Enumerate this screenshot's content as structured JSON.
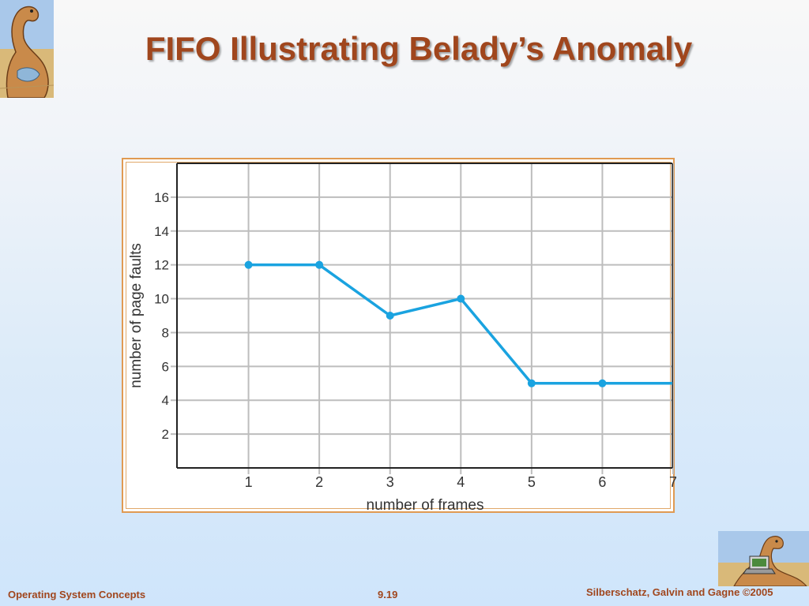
{
  "slide": {
    "title": "FIFO Illustrating Belady’s Anomaly"
  },
  "footer": {
    "left": "Operating System Concepts",
    "center": "9.19",
    "right": "Silberschatz, Galvin and Gagne ©2005"
  },
  "icons": {
    "top_left": "dinosaur-logo-icon",
    "bottom_right": "dinosaur-laptop-logo-icon"
  },
  "colors": {
    "title": "#a0461d",
    "series_line": "#1aa3e0",
    "frame_border": "#e09a52",
    "grid": "#bdbdbd"
  },
  "chart_data": {
    "type": "line",
    "title": "",
    "xlabel": "number of frames",
    "ylabel": "number of page faults",
    "x": [
      1,
      2,
      3,
      4,
      5,
      6,
      7
    ],
    "series": [
      {
        "values": [
          12,
          12,
          9,
          10,
          5,
          5,
          5
        ]
      }
    ],
    "xlim": [
      0,
      7
    ],
    "ylim": [
      0,
      18
    ],
    "xticks": [
      "1",
      "2",
      "3",
      "4",
      "5",
      "6",
      "7"
    ],
    "yticks": [
      "2",
      "4",
      "6",
      "8",
      "10",
      "12",
      "14",
      "16"
    ],
    "markers_at": [
      1,
      2,
      3,
      4,
      5,
      6
    ],
    "grid": true,
    "legend": "none"
  }
}
